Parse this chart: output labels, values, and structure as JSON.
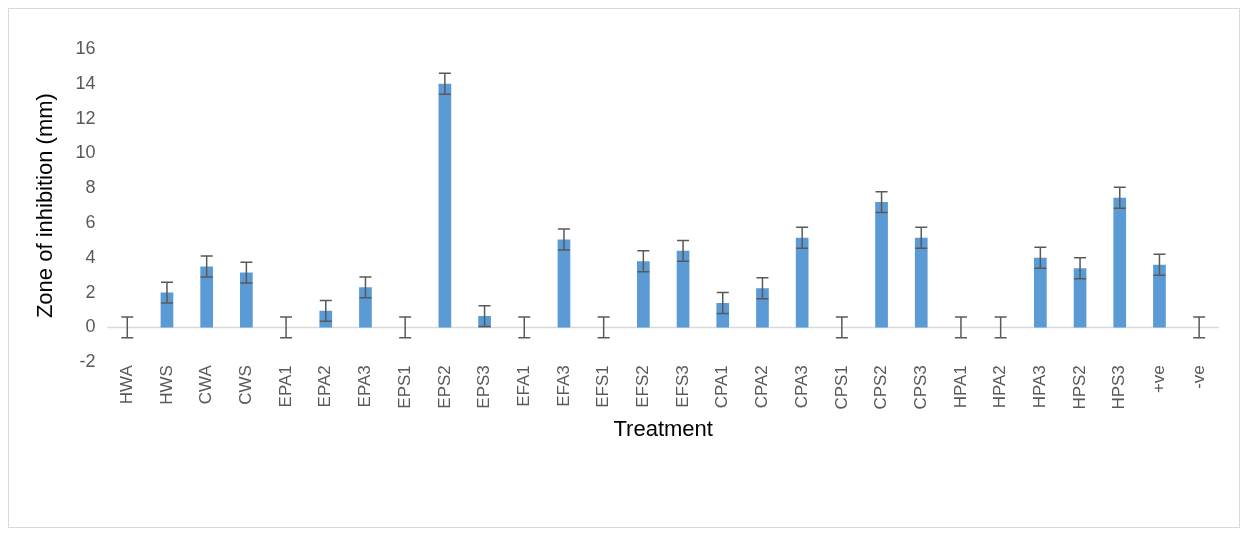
{
  "chart_data": {
    "type": "bar",
    "xlabel": "Treatment",
    "ylabel": "Zone of inhibition (mm)",
    "categories": [
      "HWA",
      "HWS",
      "CWA",
      "CWS",
      "EPA1",
      "EPA2",
      "EPA3",
      "EPS1",
      "EPS2",
      "EPS3",
      "EFA1",
      "EFA3",
      "EFS1",
      "EFS2",
      "EFS3",
      "CPA1",
      "CPA2",
      "CPA3",
      "CPS1",
      "CPS2",
      "CPS3",
      "HPA1",
      "HPA2",
      "HPA3",
      "HPS2",
      "HPS3",
      "+ve",
      "-ve"
    ],
    "values": [
      0,
      2.0,
      3.5,
      3.15,
      0,
      0.95,
      2.3,
      0,
      14.0,
      0.65,
      0,
      5.05,
      0,
      3.8,
      4.4,
      1.4,
      2.25,
      5.15,
      0,
      7.2,
      5.15,
      0,
      0,
      4.0,
      3.4,
      7.45,
      3.6,
      0
    ],
    "errors": [
      0.6,
      0.6,
      0.6,
      0.6,
      0.6,
      0.6,
      0.6,
      0.6,
      0.6,
      0.6,
      0.6,
      0.6,
      0.6,
      0.6,
      0.6,
      0.6,
      0.6,
      0.6,
      0.6,
      0.6,
      0.6,
      0.6,
      0.6,
      0.6,
      0.6,
      0.6,
      0.6,
      0.6
    ],
    "color": "#5b9bd5",
    "ylim": [
      -2,
      16
    ],
    "yticks": [
      -2,
      0,
      2,
      4,
      6,
      8,
      10,
      12,
      14,
      16
    ],
    "grid": false,
    "legend": false
  }
}
